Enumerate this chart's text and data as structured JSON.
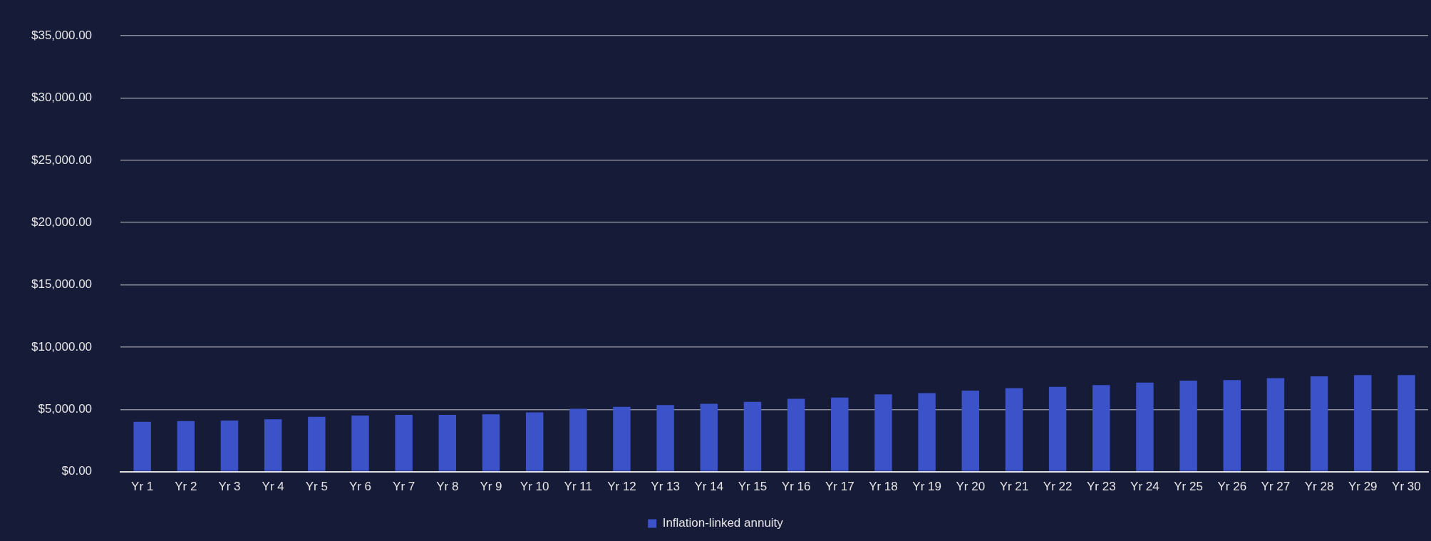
{
  "chart_data": {
    "type": "bar",
    "categories": [
      "Yr 1",
      "Yr 2",
      "Yr 3",
      "Yr 4",
      "Yr 5",
      "Yr 6",
      "Yr 7",
      "Yr 8",
      "Yr 9",
      "Yr 10",
      "Yr 11",
      "Yr 12",
      "Yr 13",
      "Yr 14",
      "Yr 15",
      "Yr 16",
      "Yr 17",
      "Yr 18",
      "Yr 19",
      "Yr 20",
      "Yr 21",
      "Yr 22",
      "Yr 23",
      "Yr 24",
      "Yr 25",
      "Yr 26",
      "Yr 27",
      "Yr 28",
      "Yr 29",
      "Yr 30"
    ],
    "series": [
      {
        "name": "Inflation-linked annuity",
        "color": "#3b52c8",
        "values": [
          4000,
          4050,
          4100,
          4200,
          4400,
          4500,
          4550,
          4550,
          4600,
          4750,
          5050,
          5200,
          5350,
          5450,
          5600,
          5850,
          5950,
          6200,
          6300,
          6500,
          6700,
          6800,
          6950,
          7150,
          7300,
          7350,
          7500,
          7650,
          7750,
          7750
        ]
      }
    ],
    "ylim": [
      0,
      35000
    ],
    "yticks": [
      {
        "value": 0,
        "label": "$0.00"
      },
      {
        "value": 5000,
        "label": "$5,000.00"
      },
      {
        "value": 10000,
        "label": "$10,000.00"
      },
      {
        "value": 15000,
        "label": "$15,000.00"
      },
      {
        "value": 20000,
        "label": "$20,000.00"
      },
      {
        "value": 25000,
        "label": "$25,000.00"
      },
      {
        "value": 30000,
        "label": "$30,000.00"
      },
      {
        "value": 35000,
        "label": "$35,000.00"
      }
    ],
    "grid": "y",
    "legend": "bottom"
  }
}
